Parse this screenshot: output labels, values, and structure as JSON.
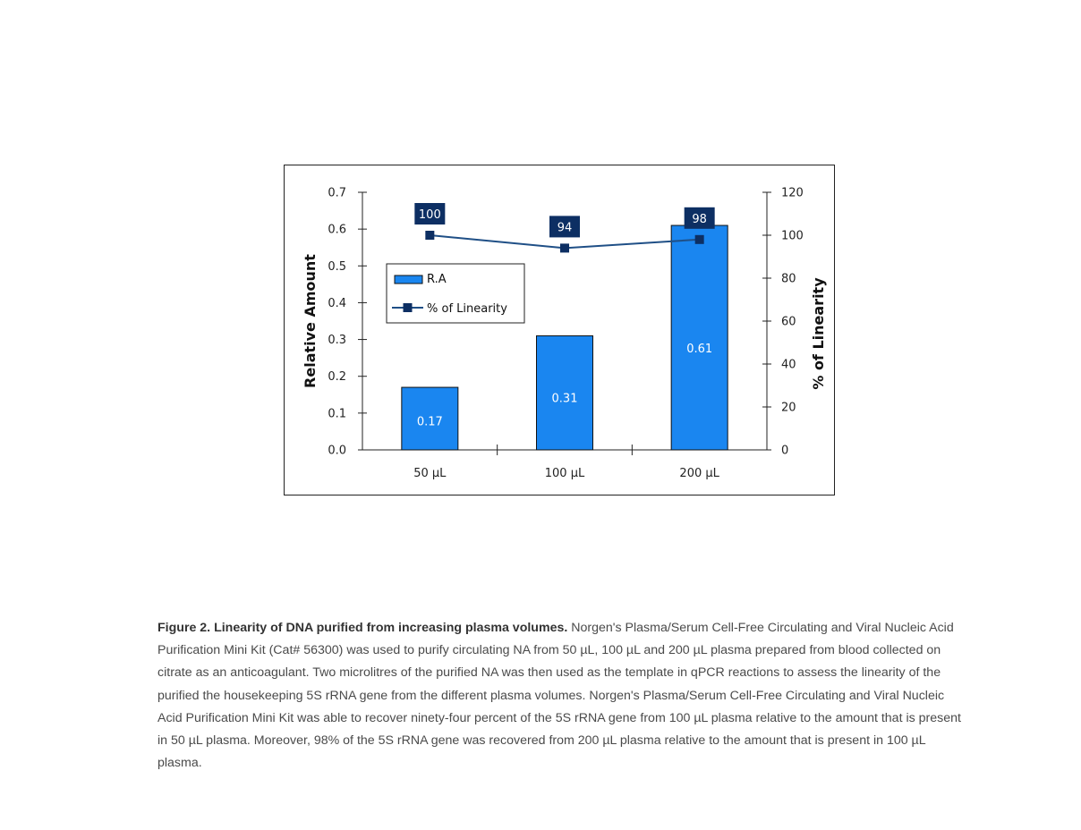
{
  "chart_data": {
    "type": "bar",
    "categories": [
      "50 µL",
      "100 µL",
      "200 µL"
    ],
    "series": [
      {
        "name": "R.A",
        "type": "bar",
        "axis": "left",
        "values": [
          0.17,
          0.31,
          0.61
        ],
        "data_labels": [
          "0.17",
          "0.31",
          "0.61"
        ]
      },
      {
        "name": "% of Linearity",
        "type": "line",
        "axis": "right",
        "values": [
          100,
          94,
          98
        ],
        "data_labels": [
          "100",
          "94",
          "98"
        ]
      }
    ],
    "ylabel": "Relative Amount",
    "y2label": "% of Linearity",
    "ylim": [
      0,
      0.7
    ],
    "y2lim": [
      0,
      120
    ],
    "yticks": [
      "0.0",
      "0.1",
      "0.2",
      "0.3",
      "0.4",
      "0.5",
      "0.6",
      "0.7"
    ],
    "y2ticks": [
      "0",
      "20",
      "40",
      "60",
      "80",
      "100",
      "120"
    ],
    "grid": false,
    "legend_position": "upper-left",
    "colors": {
      "bar": "#1a86f0",
      "line": "#1f4f86",
      "label_box": "#0d2f63"
    }
  },
  "caption": {
    "title": "Figure 2. Linearity of DNA purified from increasing plasma volumes.",
    "body": "Norgen's Plasma/Serum Cell-Free Circulating and Viral Nucleic Acid Purification Mini Kit (Cat# 56300) was used to purify circulating NA from 50 µL, 100 µL and 200 µL plasma prepared from blood collected on citrate as an anticoagulant. Two microlitres of the purified NA was then used as the template in qPCR reactions to assess the linearity of the purified the housekeeping 5S rRNA gene from the different plasma volumes. Norgen's Plasma/Serum Cell-Free Circulating and Viral Nucleic Acid Purification Mini Kit was able to recover ninety-four percent of the 5S rRNA gene from 100 µL plasma relative to the amount that is present in 50 µL plasma. Moreover, 98% of the 5S rRNA gene was recovered from 200 µL plasma relative to the amount that is present in 100 µL plasma."
  }
}
